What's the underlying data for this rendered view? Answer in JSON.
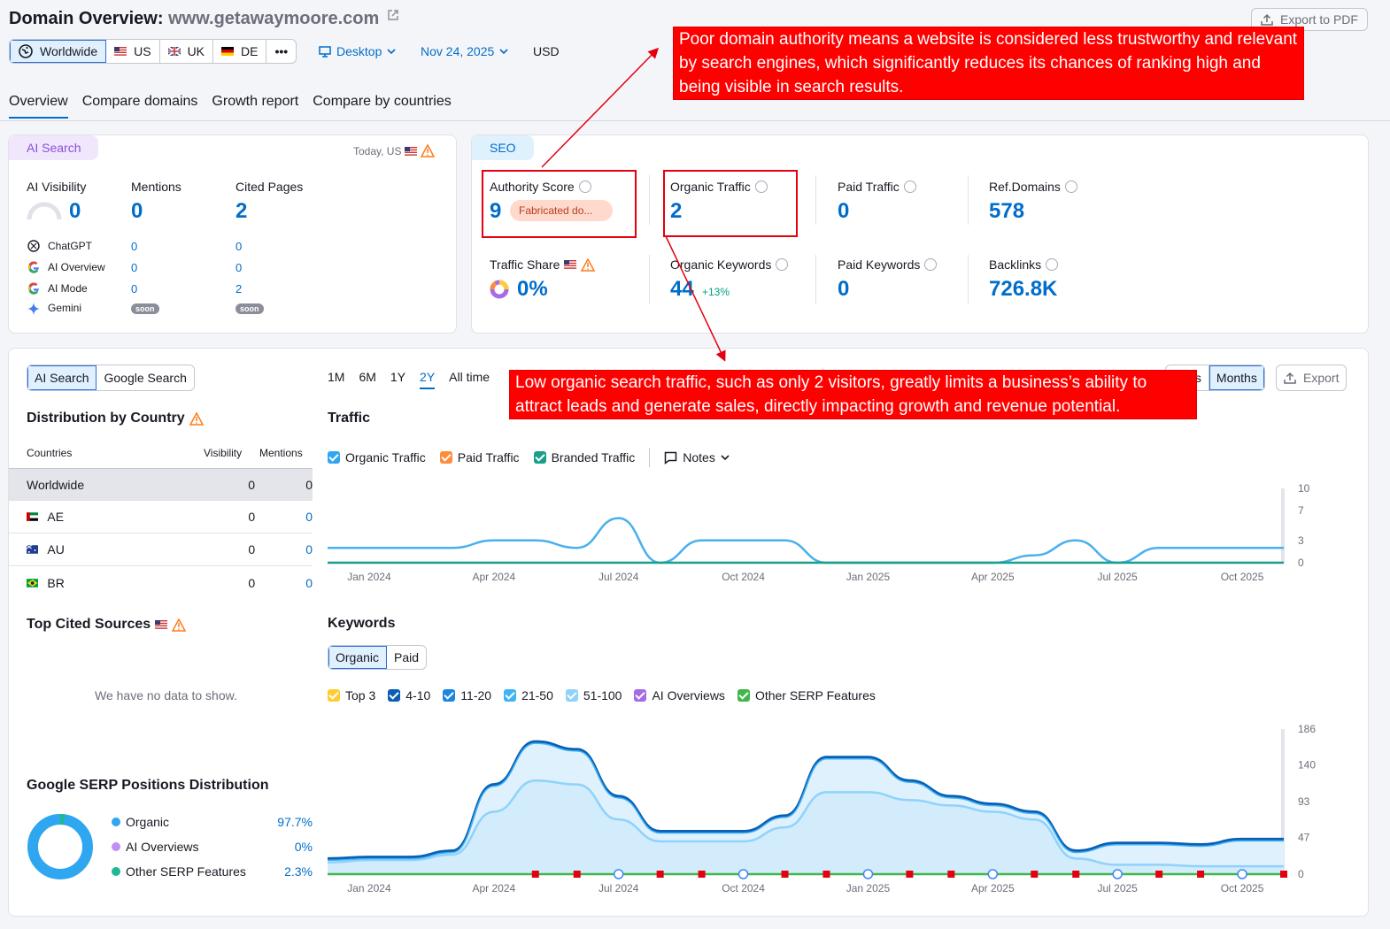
{
  "header": {
    "title_prefix": "Domain Overview:",
    "domain": "www.getawaymoore.com",
    "export_pdf": "Export to PDF"
  },
  "databases": [
    {
      "label": "Worldwide",
      "active": true
    },
    {
      "label": "US"
    },
    {
      "label": "UK"
    },
    {
      "label": "DE"
    }
  ],
  "more_label": "•••",
  "device": "Desktop",
  "date": "Nov 24, 2025",
  "currency": "USD",
  "tabs": [
    "Overview",
    "Compare domains",
    "Growth report",
    "Compare by countries"
  ],
  "ai_card": {
    "chip": "AI Search",
    "date_note": "Today, US",
    "metrics": [
      {
        "label": "AI Visibility",
        "value": "0"
      },
      {
        "label": "Mentions",
        "value": "0"
      },
      {
        "label": "Cited Pages",
        "value": "2"
      }
    ],
    "sources": [
      {
        "name": "ChatGPT",
        "mentions": "0",
        "cited": "0"
      },
      {
        "name": "AI Overview",
        "mentions": "0",
        "cited": "0"
      },
      {
        "name": "AI Mode",
        "mentions": "0",
        "cited": "2"
      },
      {
        "name": "Gemini",
        "mentions": "soon",
        "cited": "soon"
      }
    ]
  },
  "seo_card": {
    "chip": "SEO",
    "authority_label": "Authority Score",
    "authority_value": "9",
    "authority_badge": "Fabricated do...",
    "organic_traffic_label": "Organic Traffic",
    "organic_traffic_value": "2",
    "paid_traffic_label": "Paid Traffic",
    "paid_traffic_value": "0",
    "ref_domains_label": "Ref.Domains",
    "ref_domains_value": "578",
    "traffic_share_label": "Traffic Share",
    "traffic_share_value": "0%",
    "organic_kw_label": "Organic Keywords",
    "organic_kw_value": "44",
    "organic_kw_delta": "+13%",
    "paid_kw_label": "Paid Keywords",
    "paid_kw_value": "0",
    "backlinks_label": "Backlinks",
    "backlinks_value": "726.8K"
  },
  "annotations": {
    "authority": "Poor domain authority means a website is considered less trustworthy and relevant by search engines, which significantly reduces its chances of ranking high and being visible in search results.",
    "traffic": "Low organic search traffic, such as only 2 visitors, greatly limits a business’s ability to attract leads and generate sales, directly impacting growth and revenue potential."
  },
  "left_panel": {
    "search_toggle": [
      "AI Search",
      "Google Search"
    ],
    "distribution_title": "Distribution by Country",
    "col_countries": "Countries",
    "col_visibility": "Visibility",
    "col_mentions": "Mentions",
    "rows": [
      {
        "country": "Worldwide",
        "visibility": "0",
        "mentions": "0"
      },
      {
        "country": "AE",
        "visibility": "0",
        "mentions": "0"
      },
      {
        "country": "AU",
        "visibility": "0",
        "mentions": "0"
      },
      {
        "country": "BR",
        "visibility": "0",
        "mentions": "0"
      }
    ],
    "top_cited_title": "Top Cited Sources",
    "no_data": "We have no data to show.",
    "serp_title": "Google SERP Positions Distribution",
    "serp_legend": [
      {
        "name": "Organic",
        "value": "97.7%",
        "color": "#2fa6f0"
      },
      {
        "name": "AI Overviews",
        "value": "0%",
        "color": "#c18ef2"
      },
      {
        "name": "Other SERP Features",
        "value": "2.3%",
        "color": "#1db994"
      }
    ]
  },
  "range_buttons": [
    "1M",
    "6M",
    "1Y",
    "2Y",
    "All time"
  ],
  "active_range": "2Y",
  "period_buttons": [
    "Days",
    "Months"
  ],
  "export_label": "Export",
  "traffic_title": "Traffic",
  "traffic_legend": [
    {
      "name": "Organic Traffic",
      "color": "#2fa6f0"
    },
    {
      "name": "Paid Traffic",
      "color": "#ff8c3a"
    },
    {
      "name": "Branded Traffic",
      "color": "#1a9e8a"
    }
  ],
  "notes_label": "Notes",
  "keywords_title": "Keywords",
  "keywords_toggle": [
    "Organic",
    "Paid"
  ],
  "keywords_legend": [
    {
      "name": "Top 3",
      "color": "#ffcc33"
    },
    {
      "name": "4-10",
      "color": "#0a5fb4"
    },
    {
      "name": "11-20",
      "color": "#1a86e0"
    },
    {
      "name": "21-50",
      "color": "#3fb3f4"
    },
    {
      "name": "51-100",
      "color": "#8fd2fb"
    },
    {
      "name": "AI Overviews",
      "color": "#a66ce3"
    },
    {
      "name": "Other SERP Features",
      "color": "#3fb74a"
    }
  ],
  "x_ticks": [
    "Jan 2024",
    "Apr 2024",
    "Jul 2024",
    "Oct 2024",
    "Jan 2025",
    "Apr 2025",
    "Jul 2025",
    "Oct 2025"
  ],
  "chart_data": [
    {
      "type": "line",
      "title": "Traffic",
      "yticks": [
        "10",
        "7",
        "3",
        "0"
      ],
      "ylim": [
        0,
        10
      ],
      "x": [
        "Dec 2023",
        "Jan 2024",
        "Feb 2024",
        "Mar 2024",
        "Apr 2024",
        "May 2024",
        "Jun 2024",
        "Jul 2024",
        "Aug 2024",
        "Sep 2024",
        "Oct 2024",
        "Nov 2024",
        "Dec 2024",
        "Jan 2025",
        "Feb 2025",
        "Mar 2025",
        "Apr 2025",
        "May 2025",
        "Jun 2025",
        "Jul 2025",
        "Aug 2025",
        "Sep 2025",
        "Oct 2025",
        "Nov 2025"
      ],
      "series": [
        {
          "name": "Organic Traffic",
          "values": [
            2,
            2,
            2,
            2,
            3,
            3,
            2,
            6,
            0,
            3,
            3,
            3,
            0,
            0,
            0,
            0,
            0,
            1,
            3,
            0,
            2,
            2,
            2,
            2
          ]
        },
        {
          "name": "Branded Traffic",
          "values": [
            0,
            0,
            0,
            0,
            0,
            0,
            0,
            0,
            0,
            0,
            0,
            0,
            0,
            0,
            0,
            0,
            0,
            0,
            0,
            0,
            0,
            0,
            0,
            0
          ]
        }
      ]
    },
    {
      "type": "area",
      "title": "Keywords",
      "yticks": [
        "186",
        "140",
        "93",
        "47",
        "0"
      ],
      "ylim": [
        0,
        186
      ],
      "x": [
        "Dec 2023",
        "Jan 2024",
        "Feb 2024",
        "Mar 2024",
        "Apr 2024",
        "May 2024",
        "Jun 2024",
        "Jul 2024",
        "Aug 2024",
        "Sep 2024",
        "Oct 2024",
        "Nov 2024",
        "Dec 2024",
        "Jan 2025",
        "Feb 2025",
        "Mar 2025",
        "Apr 2025",
        "May 2025",
        "Jun 2025",
        "Jul 2025",
        "Aug 2025",
        "Sep 2025",
        "Oct 2025",
        "Nov 2025"
      ],
      "series": [
        {
          "name": "4-10",
          "values": [
            20,
            22,
            22,
            30,
            115,
            170,
            160,
            100,
            55,
            55,
            55,
            75,
            150,
            150,
            120,
            100,
            90,
            80,
            30,
            40,
            40,
            38,
            45,
            45
          ]
        },
        {
          "name": "21-50",
          "values": [
            15,
            18,
            18,
            25,
            80,
            120,
            115,
            70,
            42,
            42,
            42,
            60,
            105,
            105,
            95,
            88,
            80,
            70,
            20,
            12,
            12,
            10,
            10,
            10
          ]
        },
        {
          "name": "Other SERP Features",
          "values": [
            0,
            0,
            0,
            0,
            0,
            0,
            0,
            0,
            0,
            0,
            0,
            0,
            0,
            0,
            0,
            0,
            0,
            0,
            0,
            0,
            0,
            0,
            0,
            0
          ]
        }
      ]
    }
  ]
}
